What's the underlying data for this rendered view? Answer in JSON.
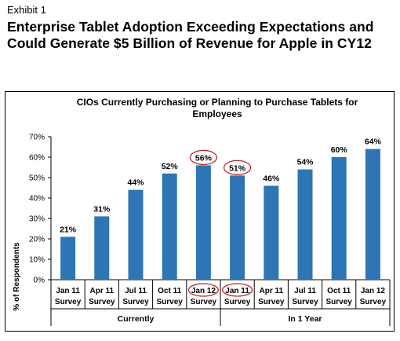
{
  "exhibit_label": "Exhibit 1",
  "headline": "Enterprise Tablet Adoption Exceeding Expectations and Could Generate $5 Billion of Revenue for Apple in CY12",
  "chart_data": {
    "type": "bar",
    "title": "CIOs Currently Purchasing or Planning to Purchase Tablets for Employees",
    "ylabel": "% of Respondents",
    "xlabel": "",
    "ylim": [
      0,
      70
    ],
    "yticks": [
      "0%",
      "10%",
      "20%",
      "30%",
      "40%",
      "50%",
      "60%",
      "70%"
    ],
    "grid": false,
    "bar_color": "#2e75b6",
    "highlight_color": "#c0272d",
    "categories": [
      [
        "Jan 11",
        "Survey"
      ],
      [
        "Apr 11",
        "Survey"
      ],
      [
        "Jul 11",
        "Survey"
      ],
      [
        "Oct 11",
        "Survey"
      ],
      [
        "Jan 12",
        "Survey"
      ],
      [
        "Jan 11",
        "Survey"
      ],
      [
        "Apr 11",
        "Survey"
      ],
      [
        "Jul 11",
        "Survey"
      ],
      [
        "Oct 11",
        "Survey"
      ],
      [
        "Jan 12",
        "Survey"
      ]
    ],
    "values": [
      21,
      31,
      44,
      52,
      56,
      51,
      46,
      54,
      60,
      64
    ],
    "data_labels": [
      "21%",
      "31%",
      "44%",
      "52%",
      "56%",
      "51%",
      "46%",
      "54%",
      "60%",
      "64%"
    ],
    "highlighted": [
      4,
      5
    ],
    "groups": [
      {
        "label": "Currently",
        "start": 0,
        "end": 4
      },
      {
        "label": "In 1 Year",
        "start": 5,
        "end": 9
      }
    ]
  }
}
